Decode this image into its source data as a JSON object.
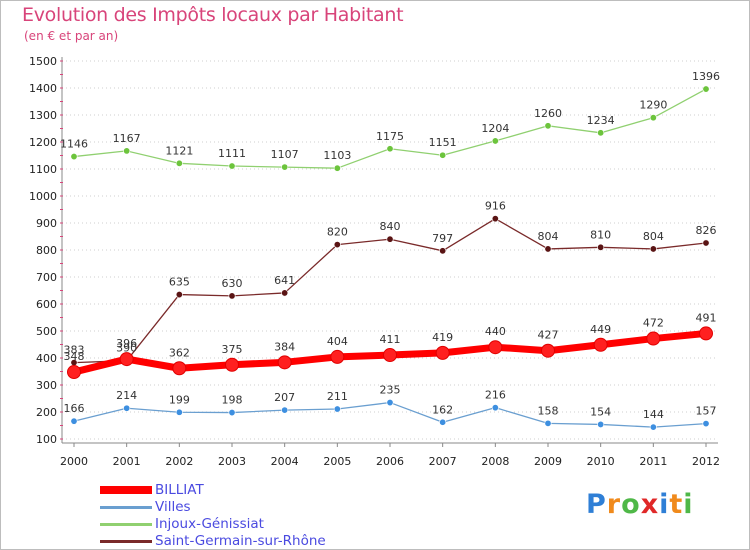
{
  "header": {
    "title": "Evolution des Impôts locaux par Habitant",
    "subtitle": "(en € et par an)"
  },
  "logo": {
    "text": "Proxiti",
    "letters": [
      {
        "ch": "P",
        "color": "#2f7fd6"
      },
      {
        "ch": "r",
        "color": "#f08a1c"
      },
      {
        "ch": "o",
        "color": "#4fb848"
      },
      {
        "ch": "x",
        "color": "#e02828"
      },
      {
        "ch": "i",
        "color": "#2f7fd6"
      },
      {
        "ch": "t",
        "color": "#f08a1c"
      },
      {
        "ch": "i",
        "color": "#4fb848"
      }
    ]
  },
  "chart_data": {
    "type": "line",
    "title": "Evolution des Impôts locaux par Habitant",
    "subtitle": "(en € et par an)",
    "x": [
      "2000",
      "2001",
      "2002",
      "2003",
      "2004",
      "2005",
      "2006",
      "2007",
      "2008",
      "2009",
      "2010",
      "2011",
      "2012"
    ],
    "ylim": [
      100,
      1500
    ],
    "yticks": [
      100,
      200,
      300,
      400,
      500,
      600,
      700,
      800,
      900,
      1000,
      1100,
      1200,
      1300,
      1400,
      1500
    ],
    "grid": "horizontal dotted",
    "legend": "bottom-left",
    "series": [
      {
        "name": "BILLIAT",
        "color": "#ff0000",
        "marker_color": "#ff2020",
        "width": 7,
        "values": [
          348,
          396,
          362,
          375,
          384,
          404,
          411,
          419,
          440,
          427,
          449,
          472,
          491
        ]
      },
      {
        "name": "Villes",
        "color": "#6a9fd0",
        "marker_color": "#3d8fe0",
        "width": 1.3,
        "values": [
          166,
          214,
          199,
          198,
          207,
          211,
          235,
          162,
          216,
          158,
          154,
          144,
          157
        ]
      },
      {
        "name": "Injoux-Génissiat",
        "color": "#90d070",
        "marker_color": "#6cc43c",
        "width": 1.3,
        "values": [
          1146,
          1167,
          1121,
          1111,
          1107,
          1103,
          1175,
          1151,
          1204,
          1260,
          1234,
          1290,
          1396
        ]
      },
      {
        "name": "Saint-Germain-sur-Rhône",
        "color": "#7a2a2a",
        "marker_color": "#5a1414",
        "width": 1.3,
        "values": [
          383,
          390,
          635,
          630,
          641,
          820,
          840,
          797,
          916,
          804,
          810,
          804,
          826
        ]
      }
    ]
  }
}
